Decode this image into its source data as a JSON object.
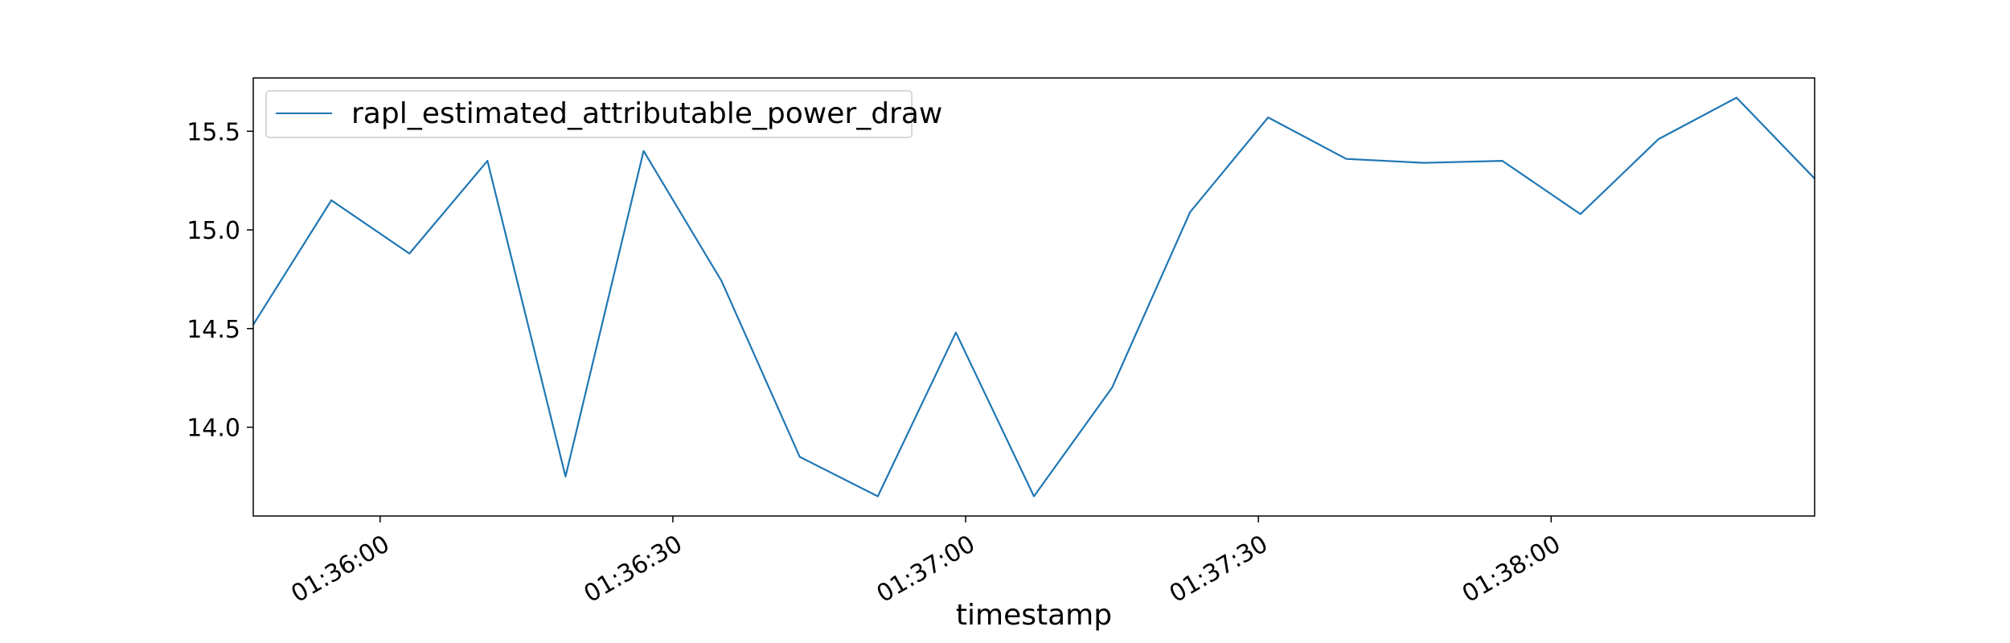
{
  "chart_data": {
    "type": "line",
    "title": "",
    "xlabel": "timestamp",
    "ylabel": "",
    "x": [
      "01:35:47",
      "01:35:55",
      "01:36:03",
      "01:36:11",
      "01:36:19",
      "01:36:27",
      "01:36:35",
      "01:36:43",
      "01:36:51",
      "01:36:59",
      "01:37:07",
      "01:37:15",
      "01:37:23",
      "01:37:31",
      "01:37:39",
      "01:37:47",
      "01:37:55",
      "01:38:03",
      "01:38:11",
      "01:38:19",
      "01:38:27"
    ],
    "xlim": [
      "01:35:47",
      "01:38:27"
    ],
    "x_ticks": [
      "01:36:00",
      "01:36:30",
      "01:37:00",
      "01:37:30",
      "01:38:00"
    ],
    "y_ticks": [
      14.0,
      14.5,
      15.0,
      15.5
    ],
    "ylim": [
      13.55,
      15.77
    ],
    "series": [
      {
        "name": "rapl_estimated_attributable_power_draw",
        "color": "#1f77b4",
        "values": [
          14.52,
          15.15,
          14.88,
          15.35,
          13.75,
          15.4,
          14.74,
          13.85,
          13.65,
          14.48,
          13.65,
          14.2,
          15.09,
          15.57,
          15.36,
          15.34,
          15.35,
          15.08,
          15.46,
          15.67,
          15.26
        ]
      }
    ],
    "legend_position": "upper-left",
    "grid": false
  }
}
